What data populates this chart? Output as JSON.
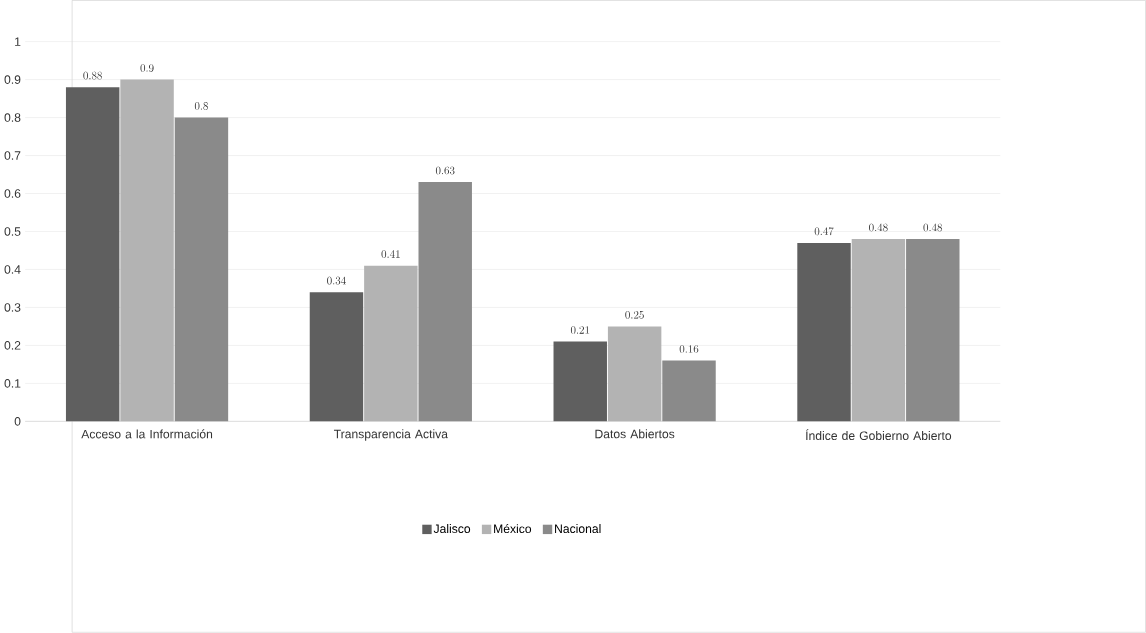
{
  "chart_data": {
    "type": "bar",
    "categories": [
      "Acceso a la Información",
      "Transparencia Activa",
      "Datos Abiertos",
      "Índice de Gobierno Abierto"
    ],
    "series": [
      {
        "name": "Jalisco",
        "color": "#5f5f5f",
        "values": [
          0.88,
          0.34,
          0.21,
          0.47
        ]
      },
      {
        "name": "México",
        "color": "#b3b3b3",
        "values": [
          0.9,
          0.41,
          0.25,
          0.48
        ]
      },
      {
        "name": "Nacional",
        "color": "#8a8a8a",
        "values": [
          0.8,
          0.63,
          0.16,
          0.48
        ]
      }
    ],
    "ylim": [
      0,
      1
    ],
    "yticks": [
      0,
      0.1,
      0.2,
      0.3,
      0.4,
      0.5,
      0.6,
      0.7,
      0.8,
      0.9,
      1
    ],
    "grid": "y",
    "legend": "bottom",
    "data_labels": true
  }
}
